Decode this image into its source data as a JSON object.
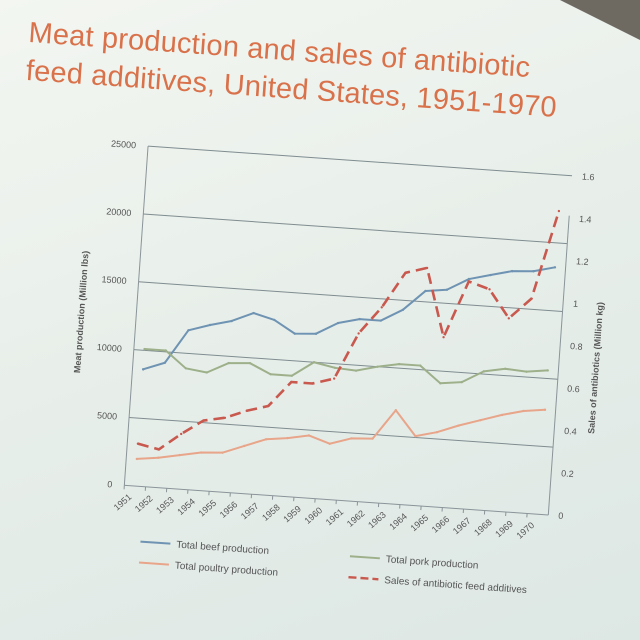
{
  "chart_data": {
    "type": "line",
    "title_line1": "Meat production and sales of antibiotic",
    "title_line2": "feed additives, United States, 1951-1970",
    "x": [
      "1951",
      "1952",
      "1953",
      "1954",
      "1955",
      "1956",
      "1957",
      "1958",
      "1959",
      "1960",
      "1961",
      "1962",
      "1963",
      "1964",
      "1965",
      "1966",
      "1967",
      "1968",
      "1969",
      "1970"
    ],
    "ylabel_left": "Meat production (Million lbs)",
    "ylabel_right": "Sales of antibiotics (Million kg)",
    "ylim_left": [
      0,
      25000
    ],
    "yticks_left": [
      "0",
      "5000",
      "10000",
      "15000",
      "20000",
      "25000"
    ],
    "ylim_right": [
      0,
      1.6
    ],
    "yticks_right": [
      "0",
      "0.2",
      "0.4",
      "0.6",
      "0.8",
      "1",
      "1.2",
      "1.4",
      "1.6"
    ],
    "grid": true,
    "legend_position": "bottom",
    "series": [
      {
        "name": "Total beef production",
        "axis": "left",
        "color": "#6f93b3",
        "dash": false,
        "values": [
          8600,
          9200,
          11700,
          12200,
          12600,
          13300,
          12900,
          12000,
          12100,
          13000,
          13400,
          13400,
          14300,
          15800,
          16000,
          16900,
          17300,
          17700,
          17800,
          18200
        ]
      },
      {
        "name": "Total pork production",
        "axis": "left",
        "color": "#9db08a",
        "dash": false,
        "values": [
          10100,
          10100,
          8900,
          8700,
          9500,
          9600,
          8900,
          8900,
          10000,
          9700,
          9600,
          10000,
          10300,
          10300,
          9100,
          9300,
          10200,
          10500,
          10400,
          10600
        ]
      },
      {
        "name": "Total poultry production",
        "axis": "left",
        "color": "#e8a58a",
        "dash": false,
        "values": [
          2000,
          2200,
          2500,
          2800,
          2900,
          3500,
          4100,
          4300,
          4600,
          4100,
          4600,
          4700,
          6900,
          5100,
          5500,
          6100,
          6600,
          7100,
          7500,
          7700
        ]
      },
      {
        "name": "Sales of antibiotic feed additives",
        "axis": "right",
        "color": "#c9584e",
        "dash": true,
        "values": [
          0.2,
          0.18,
          0.26,
          0.33,
          0.35,
          0.39,
          0.42,
          0.54,
          0.54,
          0.57,
          0.79,
          0.92,
          1.09,
          1.12,
          0.8,
          1.07,
          1.04,
          0.91,
          1.01,
          1.43
        ]
      }
    ]
  }
}
